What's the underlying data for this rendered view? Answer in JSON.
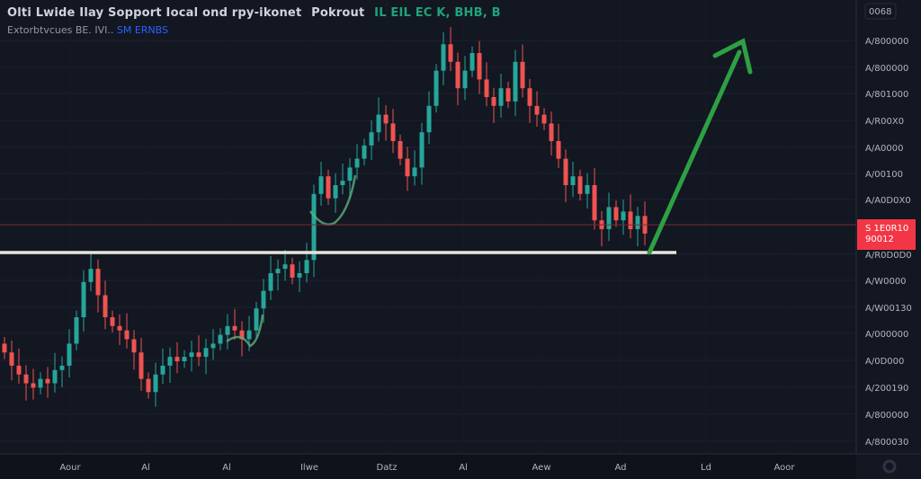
{
  "header": {
    "title": "Olti Lwide Ilay Sopport Iocal ond rpy-ikonet",
    "title_tag": "Pokrout",
    "title_values": "IL EIL EC  K, BHB, B",
    "subtitle": "Extorbtvcues BE. IVI..",
    "subtitle_value": "SM ERNBS"
  },
  "colors": {
    "background": "#131722",
    "up": "#26a69a",
    "down": "#ef5350",
    "support_line": "#e8e4da",
    "arrow": "#2ea043",
    "price_label": "#f23645"
  },
  "chart_data": {
    "type": "candlestick",
    "title": "",
    "xlabel": "",
    "ylabel": "",
    "ylim": [
      0,
      100
    ],
    "grid": true,
    "closes": [
      22,
      19,
      17,
      15,
      14,
      16,
      15,
      18,
      19,
      24,
      30,
      38,
      41,
      35,
      30,
      28,
      27,
      25,
      22,
      16,
      13,
      17,
      19,
      21,
      20,
      21,
      22,
      21,
      23,
      24,
      26,
      28,
      27,
      25,
      27,
      32,
      36,
      40,
      41,
      42,
      39,
      40,
      43,
      58,
      62,
      57,
      60,
      61,
      64,
      66,
      69,
      72,
      76,
      74,
      70,
      66,
      62,
      64,
      72,
      78,
      86,
      92,
      88,
      82,
      86,
      90,
      84,
      80,
      78,
      82,
      79,
      88,
      82,
      78,
      76,
      74,
      70,
      66,
      60,
      62,
      58,
      60,
      52,
      50,
      55,
      52,
      54,
      50,
      53,
      49
    ],
    "x_tick_labels": [
      "Aour",
      "Al",
      "Al",
      "Ilwe",
      "Datz",
      "Al",
      "Aew",
      "Ad",
      "Ld",
      "Aoor"
    ],
    "y_tick_labels": [
      "A/800000",
      "A/800000",
      "A/801000",
      "A/R00X0",
      "A/A0000",
      "A/00100",
      "A/A0D0X0",
      "A/R0D0D0",
      "A/W0000",
      "A/W00130",
      "A/000000",
      "A/0D000",
      "A/200190",
      "A/800000",
      "A/800030"
    ],
    "y_top_label": "0068",
    "support_level": 44.7,
    "current_price": 51.0,
    "current_price_label": [
      "S 1E0R10",
      "90012"
    ],
    "annotations": [
      "support-line",
      "breakout-arrow-up"
    ]
  }
}
